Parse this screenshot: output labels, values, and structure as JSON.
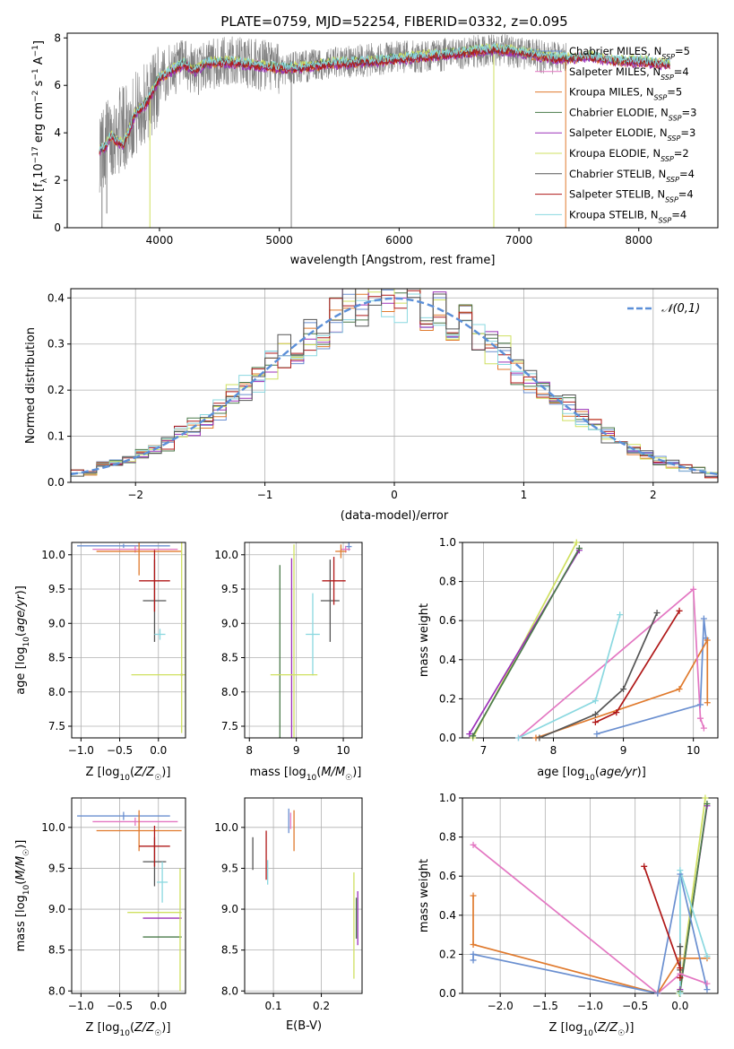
{
  "figure": {
    "title": "PLATE=0759, MJD=52254, FIBERID=0332, z=0.095"
  },
  "chart_data": [
    {
      "type": "line",
      "panel": "spectrum",
      "xlabel": "wavelength [Angstrom, rest frame]",
      "ylabel": "Flux [f_λ 10⁻¹⁷ erg cm⁻² s⁻¹ A⁻¹]",
      "xlim": [
        3230,
        8660
      ],
      "ylim": [
        0,
        8.2
      ],
      "xticks": [
        4000,
        5000,
        6000,
        7000,
        8000
      ],
      "yticks": [
        0,
        2,
        4,
        6,
        8
      ],
      "grid": false,
      "legend_placement": "upper-right",
      "observed": {
        "color": "#808080",
        "x_range": [
          3500,
          7400
        ],
        "wave": [
          3500,
          3600,
          3700,
          3800,
          3900,
          4000,
          4100,
          4200,
          4300,
          4400,
          4500,
          4600,
          4800,
          5000,
          5200,
          5400,
          5600,
          5800,
          6000,
          6200,
          6400,
          6600,
          6800,
          7000,
          7200,
          7400
        ],
        "flux": [
          3.3,
          3.9,
          4.2,
          4.8,
          5.3,
          6.2,
          6.7,
          6.8,
          6.6,
          6.9,
          6.9,
          7.0,
          6.9,
          6.7,
          6.8,
          6.9,
          7.0,
          7.1,
          7.2,
          7.2,
          7.3,
          7.4,
          7.5,
          7.4,
          7.2,
          7.1
        ]
      },
      "model_wave": [
        3500,
        3550,
        3600,
        3650,
        3700,
        3800,
        3900,
        4000,
        4100,
        4200,
        4300,
        4400,
        4600,
        4800,
        5000,
        5200,
        5400,
        5600,
        5800,
        6000,
        6200,
        6400,
        6600,
        6800,
        7000,
        7200,
        7400,
        7600,
        7800,
        8000,
        8200
      ],
      "model_flux": [
        3.3,
        3.4,
        3.9,
        3.6,
        3.5,
        4.8,
        5.3,
        6.3,
        6.6,
        6.9,
        6.6,
        6.95,
        6.95,
        6.85,
        6.7,
        6.75,
        6.9,
        6.95,
        7.0,
        7.1,
        7.2,
        7.3,
        7.4,
        7.5,
        7.4,
        7.2,
        7.1,
        7.2,
        7.0,
        7.0,
        6.9
      ],
      "series": [
        {
          "name": "Chabrier MILES, N_SSP=5",
          "color": "#6a8fd0",
          "offset": 0.0
        },
        {
          "name": "Salpeter MILES, N_SSP=4",
          "color": "#e377c2",
          "offset": 0.05
        },
        {
          "name": "Kroupa MILES, N_SSP=5",
          "color": "#e07a2d",
          "offset": -0.05
        },
        {
          "name": "Chabrier ELODIE, N_SSP=3",
          "color": "#4a7a4a",
          "offset": 0.08
        },
        {
          "name": "Salpeter ELODIE, N_SSP=3",
          "color": "#9b30b8",
          "offset": -0.08
        },
        {
          "name": "Kroupa ELODIE, N_SSP=2",
          "color": "#cfe060",
          "offset": 0.12
        },
        {
          "name": "Chabrier STELIB, N_SSP=4",
          "color": "#555555",
          "offset": 0.03
        },
        {
          "name": "Salpeter STELIB, N_SSP=4",
          "color": "#b01818",
          "offset": -0.02
        },
        {
          "name": "Kroupa STELIB, N_SSP=4",
          "color": "#8ad8e0",
          "offset": 0.1
        }
      ]
    },
    {
      "type": "line",
      "panel": "residuals",
      "xlabel": "(data-model)/error",
      "ylabel": "Normed distribution",
      "xlim": [
        -2.5,
        2.5
      ],
      "ylim": [
        0,
        0.42
      ],
      "xticks": [
        -2,
        -1,
        0,
        1,
        2
      ],
      "yticks": [
        0.0,
        0.1,
        0.2,
        0.3,
        0.4
      ],
      "grid": true,
      "legend_placement": "upper-right",
      "gaussian": {
        "name": "𝒩(0,1)",
        "mean": 0,
        "sigma": 1,
        "color": "#5b8fd8"
      },
      "bin_width": 0.1,
      "series": [
        {
          "color": "#6a8fd0",
          "seed": 1
        },
        {
          "color": "#e07a2d",
          "seed": 2
        },
        {
          "color": "#4a7a4a",
          "seed": 3
        },
        {
          "color": "#9b30b8",
          "seed": 4
        },
        {
          "color": "#cfe060",
          "seed": 5
        },
        {
          "color": "#b01818",
          "seed": 6
        },
        {
          "color": "#8ad8e0",
          "seed": 7
        },
        {
          "color": "#555555",
          "seed": 8
        }
      ]
    },
    {
      "type": "scatter",
      "panel": "age-vs-Z",
      "xlabel": "Z [log₁₀(Z/Z☉)]",
      "ylabel": "age  [log₁₀(age/yr)]",
      "xlim": [
        -1.12,
        0.35
      ],
      "ylim": [
        7.33,
        10.18
      ],
      "xticks": [
        -1.0,
        -0.5,
        0.0
      ],
      "yticks": [
        7.5,
        8.0,
        8.5,
        9.0,
        9.5,
        10.0,
        10.5
      ],
      "grid": true,
      "points": [
        {
          "x": -0.45,
          "y": 10.13,
          "xerr": 0.6,
          "yerr": 0.03,
          "color": "#6a8fd0"
        },
        {
          "x": -0.3,
          "y": 10.08,
          "xerr": 0.55,
          "yerr": 0.05,
          "color": "#e377c2"
        },
        {
          "x": -0.25,
          "y": 10.05,
          "xerr": 0.55,
          "yerr": 0.35,
          "color": "#e07a2d"
        },
        {
          "x": -0.05,
          "y": 9.33,
          "xerr": 0.15,
          "yerr": 0.6,
          "color": "#555555"
        },
        {
          "x": -0.05,
          "y": 9.62,
          "xerr": 0.2,
          "yerr": 0.45,
          "color": "#b01818"
        },
        {
          "x": 0.02,
          "y": 8.84,
          "xerr": 0.07,
          "yerr": 0.08,
          "color": "#8ad8e0"
        },
        {
          "x": 0.3,
          "y": 8.25,
          "xerr": 0.0,
          "yerr": 0.0,
          "color": "#4a7a4a"
        },
        {
          "x": 0.3,
          "y": 8.25,
          "xerr": 0.0,
          "yerr": 0.0,
          "color": "#9b30b8"
        },
        {
          "x": 0.0,
          "y": 8.25,
          "xerr": 0.35,
          "yerr": 0.0,
          "color": "#cfe060"
        },
        {
          "x": 0.3,
          "y": 8.8,
          "xerr": 0.0,
          "yerr": 1.4,
          "color": "#cfe060"
        }
      ]
    },
    {
      "type": "scatter",
      "panel": "age-vs-mass",
      "xlabel": "mass [log₁₀(M/M☉)]",
      "ylabel": "",
      "xlim": [
        7.9,
        10.4
      ],
      "ylim": [
        7.33,
        10.18
      ],
      "xticks": [
        8,
        9,
        10
      ],
      "yticks": [
        7.5,
        8.0,
        8.5,
        9.0,
        9.5,
        10.0
      ],
      "grid": true,
      "points": [
        {
          "x": 10.12,
          "y": 10.12,
          "xerr": 0.06,
          "yerr": 0.06,
          "color": "#6a8fd0"
        },
        {
          "x": 10.05,
          "y": 10.08,
          "xerr": 0.1,
          "yerr": 0.05,
          "color": "#e377c2"
        },
        {
          "x": 9.95,
          "y": 10.05,
          "xerr": 0.12,
          "yerr": 0.1,
          "color": "#e07a2d"
        },
        {
          "x": 9.72,
          "y": 9.33,
          "xerr": 0.2,
          "yerr": 0.6,
          "color": "#555555"
        },
        {
          "x": 9.8,
          "y": 9.62,
          "xerr": 0.25,
          "yerr": 0.35,
          "color": "#b01818"
        },
        {
          "x": 9.35,
          "y": 8.84,
          "xerr": 0.15,
          "yerr": 0.6,
          "color": "#8ad8e0"
        },
        {
          "x": 8.65,
          "y": 8.25,
          "xerr": 0.0,
          "yerr": 1.6,
          "color": "#4a7a4a"
        },
        {
          "x": 8.9,
          "y": 8.25,
          "xerr": 0.0,
          "yerr": 1.7,
          "color": "#9b30b8"
        },
        {
          "x": 8.95,
          "y": 8.25,
          "xerr": 0.5,
          "yerr": 1.9,
          "color": "#cfe060"
        }
      ]
    },
    {
      "type": "line",
      "panel": "mass-weight-vs-age",
      "xlabel": "age  [log₁₀(age/yr)]",
      "ylabel": "mass weight",
      "xlim": [
        6.7,
        10.35
      ],
      "ylim": [
        0,
        1.0
      ],
      "xticks": [
        7,
        8,
        9,
        10
      ],
      "yticks": [
        0.0,
        0.2,
        0.4,
        0.6,
        0.8,
        1.0
      ],
      "grid": true,
      "series": [
        {
          "color": "#cfe060",
          "x": [
            6.85,
            8.33
          ],
          "y": [
            0.0,
            1.0
          ]
        },
        {
          "color": "#9b30b8",
          "x": [
            6.8,
            8.37
          ],
          "y": [
            0.02,
            0.96
          ]
        },
        {
          "color": "#4a7a4a",
          "x": [
            6.85,
            8.37
          ],
          "y": [
            0.01,
            0.97
          ]
        },
        {
          "color": "#6a8fd0",
          "x": [
            8.62,
            10.1,
            10.15,
            10.18
          ],
          "y": [
            0.02,
            0.17,
            0.61,
            0.51
          ]
        },
        {
          "color": "#e07a2d",
          "x": [
            7.75,
            9.8,
            10.2,
            10.2
          ],
          "y": [
            0.0,
            0.25,
            0.5,
            0.18
          ]
        },
        {
          "color": "#e377c2",
          "x": [
            7.5,
            10.0,
            10.1,
            10.15
          ],
          "y": [
            0.0,
            0.76,
            0.1,
            0.05
          ]
        },
        {
          "color": "#8ad8e0",
          "x": [
            7.5,
            8.6,
            8.95
          ],
          "y": [
            0.0,
            0.19,
            0.63
          ]
        },
        {
          "color": "#555555",
          "x": [
            7.8,
            8.6,
            9.0,
            9.48
          ],
          "y": [
            0.0,
            0.12,
            0.25,
            0.64
          ]
        },
        {
          "color": "#b01818",
          "x": [
            8.6,
            8.9,
            9.8
          ],
          "y": [
            0.08,
            0.13,
            0.65
          ]
        }
      ]
    },
    {
      "type": "scatter",
      "panel": "mass-vs-Z",
      "xlabel": "Z [log₁₀(Z/Z☉)]",
      "ylabel": "mass [log₁₀(M/M☉)]",
      "xlim": [
        -1.12,
        0.35
      ],
      "ylim": [
        7.97,
        10.36
      ],
      "xticks": [
        -1.0,
        -0.5,
        0.0
      ],
      "yticks": [
        8.0,
        8.5,
        9.0,
        9.5,
        10.0
      ],
      "grid": true,
      "points": [
        {
          "x": -0.45,
          "y": 10.14,
          "xerr": 0.6,
          "yerr": 0.05,
          "color": "#6a8fd0"
        },
        {
          "x": -0.3,
          "y": 10.07,
          "xerr": 0.55,
          "yerr": 0.05,
          "color": "#e377c2"
        },
        {
          "x": -0.25,
          "y": 9.96,
          "xerr": 0.55,
          "yerr": 0.25,
          "color": "#e07a2d"
        },
        {
          "x": -0.05,
          "y": 9.58,
          "xerr": 0.15,
          "yerr": 0.3,
          "color": "#555555"
        },
        {
          "x": -0.05,
          "y": 9.77,
          "xerr": 0.2,
          "yerr": 0.25,
          "color": "#b01818"
        },
        {
          "x": 0.05,
          "y": 9.33,
          "xerr": 0.07,
          "yerr": 0.25,
          "color": "#8ad8e0"
        },
        {
          "x": 0.05,
          "y": 8.66,
          "xerr": 0.25,
          "yerr": 0.0,
          "color": "#4a7a4a"
        },
        {
          "x": 0.05,
          "y": 8.89,
          "xerr": 0.25,
          "yerr": 0.0,
          "color": "#9b30b8"
        },
        {
          "x": -0.05,
          "y": 8.96,
          "xerr": 0.35,
          "yerr": 0.0,
          "color": "#cfe060"
        },
        {
          "x": 0.28,
          "y": 8.75,
          "xerr": 0.0,
          "yerr": 0.75,
          "color": "#cfe060"
        }
      ]
    },
    {
      "type": "scatter",
      "panel": "mass-vs-EBV",
      "xlabel": "E(B-V)",
      "ylabel": "",
      "xlim": [
        0.04,
        0.285
      ],
      "ylim": [
        7.97,
        10.36
      ],
      "xticks": [
        0.1,
        0.2
      ],
      "yticks": [
        8.0,
        8.5,
        9.0,
        9.5,
        10.0
      ],
      "grid": true,
      "points": [
        {
          "x": 0.057,
          "y": 9.68,
          "xerr": 0,
          "yerr": 0.2,
          "color": "#555555"
        },
        {
          "x": 0.085,
          "y": 9.66,
          "xerr": 0,
          "yerr": 0.3,
          "color": "#b01818"
        },
        {
          "x": 0.088,
          "y": 9.45,
          "xerr": 0,
          "yerr": 0.15,
          "color": "#8ad8e0"
        },
        {
          "x": 0.132,
          "y": 10.08,
          "xerr": 0,
          "yerr": 0.15,
          "color": "#6a8fd0"
        },
        {
          "x": 0.136,
          "y": 10.08,
          "xerr": 0,
          "yerr": 0.1,
          "color": "#e377c2"
        },
        {
          "x": 0.143,
          "y": 9.96,
          "xerr": 0,
          "yerr": 0.25,
          "color": "#e07a2d"
        },
        {
          "x": 0.268,
          "y": 8.8,
          "xerr": 0,
          "yerr": 0.65,
          "color": "#cfe060"
        },
        {
          "x": 0.273,
          "y": 8.89,
          "xerr": 0,
          "yerr": 0.25,
          "color": "#4a7a4a"
        },
        {
          "x": 0.276,
          "y": 8.89,
          "xerr": 0,
          "yerr": 0.33,
          "color": "#9b30b8"
        }
      ]
    },
    {
      "type": "line",
      "panel": "mass-weight-vs-Z",
      "xlabel": "Z [log₁₀(Z/Z☉)]",
      "ylabel": "mass weight",
      "xlim": [
        -2.42,
        0.42
      ],
      "ylim": [
        0,
        1.0
      ],
      "xticks": [
        -2.0,
        -1.5,
        -1.0,
        -0.5,
        0.0
      ],
      "yticks": [
        0.0,
        0.2,
        0.4,
        0.6,
        0.8,
        1.0
      ],
      "grid": true,
      "series": [
        {
          "color": "#cfe060",
          "x": [
            -0.01,
            0.28
          ],
          "y": [
            0.0,
            1.0
          ]
        },
        {
          "color": "#9b30b8",
          "x": [
            0.0,
            0.3
          ],
          "y": [
            0.02,
            0.96
          ]
        },
        {
          "color": "#4a7a4a",
          "x": [
            0.0,
            0.3
          ],
          "y": [
            0.01,
            0.97
          ]
        },
        {
          "color": "#e377c2",
          "x": [
            -2.3,
            -0.25,
            0.0,
            0.3
          ],
          "y": [
            0.76,
            0.0,
            0.1,
            0.05
          ]
        },
        {
          "color": "#e07a2d",
          "x": [
            -2.3,
            -2.3,
            -0.25,
            0.0,
            0.3
          ],
          "y": [
            0.5,
            0.25,
            0.0,
            0.18,
            0.18
          ]
        },
        {
          "color": "#6a8fd0",
          "x": [
            -2.3,
            -2.3,
            -0.25,
            0.0,
            0.3
          ],
          "y": [
            0.17,
            0.2,
            0.0,
            0.61,
            0.02
          ]
        },
        {
          "color": "#8ad8e0",
          "x": [
            0.0,
            0.0,
            0.3
          ],
          "y": [
            0.0,
            0.63,
            0.19
          ]
        },
        {
          "color": "#555555",
          "x": [
            0.0,
            0.0
          ],
          "y": [
            0.12,
            0.24
          ]
        },
        {
          "color": "#b01818",
          "x": [
            -0.4,
            0.0,
            0.0
          ],
          "y": [
            0.65,
            0.13,
            0.08
          ]
        }
      ]
    }
  ]
}
